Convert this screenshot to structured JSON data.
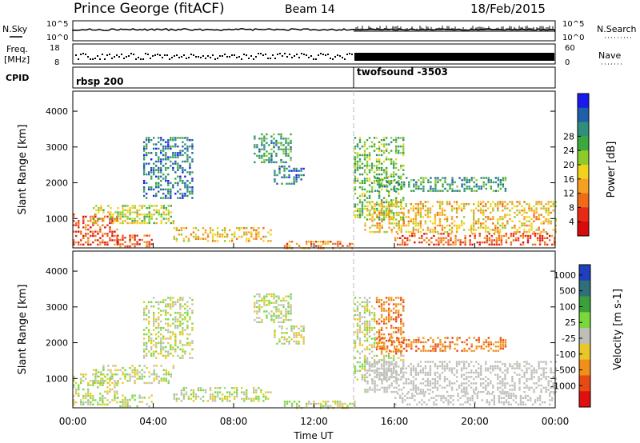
{
  "header": {
    "station": "Prince George (fitACF)",
    "beam": "Beam 14",
    "date": "18/Feb/2015"
  },
  "noise_panel": {
    "left_label": "N.Sky",
    "right_label": "N.Search",
    "left_ticks": [
      "10^5",
      "10^0"
    ],
    "right_ticks": [
      "10^5",
      "10^0"
    ]
  },
  "freq_panel": {
    "left_label_1": "Freq.",
    "left_label_2": "[MHz]",
    "right_label": "Nave",
    "left_ticks": [
      "18",
      "8"
    ],
    "right_ticks": [
      "60",
      "0"
    ]
  },
  "cpid_panel": {
    "label": "CPID",
    "segments": [
      {
        "name": "rbsp 200",
        "start_hour": 0
      },
      {
        "name": "twofsound -3503",
        "start_hour": 14
      }
    ]
  },
  "chart_data": [
    {
      "type": "heatmap",
      "panel": "power",
      "ylabel": "Slant Range [km]",
      "xlabel": "",
      "xlim": [
        0,
        24
      ],
      "ylim": [
        180,
        4560
      ],
      "yticks": [
        "1000",
        "2000",
        "3000",
        "4000"
      ],
      "colorbar": {
        "label": "Power [dB]",
        "ticks": [
          "4",
          "8",
          "12",
          "16",
          "20",
          "24",
          "28"
        ],
        "colors": [
          "#1a1aee",
          "#1f5faa",
          "#2f8f7a",
          "#3aa83a",
          "#8ccc2a",
          "#f2d21a",
          "#f5a020",
          "#f06a18",
          "#e82a14",
          "#d80a0a"
        ]
      }
    },
    {
      "type": "heatmap",
      "panel": "velocity",
      "ylabel": "Slant Range [km]",
      "xlabel": "Time UT",
      "xlim": [
        0,
        24
      ],
      "ylim": [
        180,
        4560
      ],
      "yticks": [
        "1000",
        "2000",
        "3000",
        "4000"
      ],
      "xticks": [
        "00:00",
        "04:00",
        "08:00",
        "12:00",
        "16:00",
        "20:00",
        "00:00"
      ],
      "colorbar": {
        "label": "Velocity [m s-1]",
        "ticks": [
          "1000",
          "500",
          "100",
          "25",
          "-25",
          "-100",
          "-500",
          "-1000"
        ],
        "colors": [
          "#1f3fbf",
          "#2f6f7a",
          "#3aa03a",
          "#7ad83a",
          "#bebeb8",
          "#e8c828",
          "#f0901a",
          "#e84a14",
          "#e01010"
        ]
      }
    }
  ]
}
